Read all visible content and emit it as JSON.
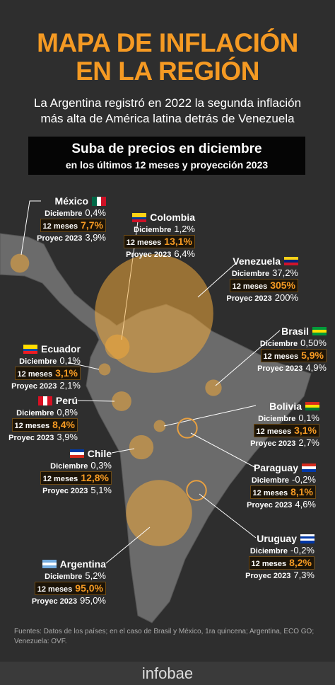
{
  "header": {
    "title_lines": [
      "MAPA DE INFLACIÓN",
      "EN LA REGIÓN"
    ],
    "subtitle_lines": [
      "La Argentina registró en 2022 la segunda inflación",
      "más alta de América latina detrás de Venezuela"
    ]
  },
  "box": {
    "title": "Suba de precios en diciembre",
    "subtitle": "en los últimos 12 meses y proyección 2023"
  },
  "labels": {
    "dec": "Diciembre",
    "m12": "12 meses",
    "proj": "Proyec 2023"
  },
  "countries": [
    {
      "name": "México",
      "dec": "0,4%",
      "m12": "7,7%",
      "m12_value": 7.7,
      "proj": "3,9%"
    },
    {
      "name": "Colombia",
      "dec": "1,2%",
      "m12": "13,1%",
      "m12_value": 13.1,
      "proj": "6,4%"
    },
    {
      "name": "Venezuela",
      "dec": "37,2%",
      "m12": "305%",
      "m12_value": 305,
      "proj": "200%"
    },
    {
      "name": "Brasil",
      "dec": "0,50%",
      "m12": "5,9%",
      "m12_value": 5.9,
      "proj": "4,9%"
    },
    {
      "name": "Ecuador",
      "dec": "0,1%",
      "m12": "3,1%",
      "m12_value": 3.1,
      "proj": "2,1%"
    },
    {
      "name": "Perú",
      "dec": "0,8%",
      "m12": "8,4%",
      "m12_value": 8.4,
      "proj": "3,9%"
    },
    {
      "name": "Bolivia",
      "dec": "0,1%",
      "m12": "3,1%",
      "m12_value": 3.1,
      "proj": "2,7%"
    },
    {
      "name": "Chile",
      "dec": "0,3%",
      "m12": "12,8%",
      "m12_value": 12.8,
      "proj": "5,1%"
    },
    {
      "name": "Paraguay",
      "dec": "-0,2%",
      "m12": "8,1%",
      "m12_value": 8.1,
      "proj": "4,6%"
    },
    {
      "name": "Uruguay",
      "dec": "-0,2%",
      "m12": "8,2%",
      "m12_value": 8.2,
      "proj": "7,3%"
    },
    {
      "name": "Argentina",
      "dec": "5,2%",
      "m12": "95,0%",
      "m12_value": 95.0,
      "proj": "95,0%"
    }
  ],
  "footer": {
    "lines": [
      "Fuentes: Datos de los países; en el caso de Brasil y México, 1ra quincena; Argentina, ECO GO;",
      "Venezuela: OVF."
    ],
    "logo": "infobae"
  }
}
